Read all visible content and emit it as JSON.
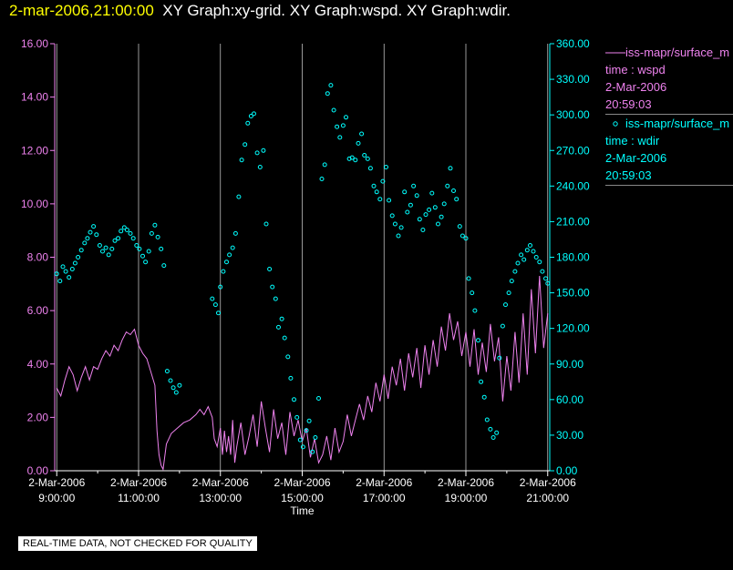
{
  "header": {
    "timestamp": "2-mar-2006,21:00:00",
    "titles": "XY Graph:xy-grid.  XY Graph:wspd.  XY Graph:wdir."
  },
  "legend": {
    "wspd": {
      "source": "iss-mapr/surface_m",
      "field": "time : wspd",
      "date": "2-Mar-2006",
      "time": "20:59:03"
    },
    "wdir": {
      "source": "iss-mapr/surface_m",
      "field": "time : wdir",
      "date": "2-Mar-2006",
      "time": "20:59:03"
    }
  },
  "footer": "REAL-TIME DATA, NOT CHECKED FOR QUALITY",
  "colors": {
    "wspd": "#ee82ee",
    "wdir": "#00ffff",
    "grid": "#ffffff",
    "background": "#000000"
  },
  "chart_data": {
    "type": "line",
    "xlabel": "Time",
    "xlim": [
      8.95,
      21.05
    ],
    "x_ticks": [
      {
        "value": 9,
        "line1": "2-Mar-2006",
        "line2": "9:00:00"
      },
      {
        "value": 11,
        "line1": "2-Mar-2006",
        "line2": "11:00:00"
      },
      {
        "value": 13,
        "line1": "2-Mar-2006",
        "line2": "13:00:00"
      },
      {
        "value": 15,
        "line1": "2-Mar-2006",
        "line2": "15:00:00"
      },
      {
        "value": 17,
        "line1": "2-Mar-2006",
        "line2": "17:00:00"
      },
      {
        "value": 19,
        "line1": "2-Mar-2006",
        "line2": "19:00:00"
      },
      {
        "value": 21,
        "line1": "2-Mar-2006",
        "line2": "21:00:00"
      }
    ],
    "x_minor_ticks": [
      10,
      12,
      14,
      16,
      18,
      20
    ],
    "y_left": {
      "lim": [
        0,
        16
      ],
      "ticks": [
        "0.00",
        "2.00",
        "4.00",
        "6.00",
        "8.00",
        "10.00",
        "12.00",
        "14.00",
        "16.00"
      ]
    },
    "y_right": {
      "lim": [
        0,
        360
      ],
      "ticks": [
        "0.00",
        "30.00",
        "60.00",
        "90.00",
        "120.00",
        "150.00",
        "180.00",
        "210.00",
        "240.00",
        "270.00",
        "300.00",
        "330.00",
        "360.00"
      ]
    },
    "grid": "vertical",
    "series": [
      {
        "name": "iss-mapr/surface_m time : wspd",
        "style": "line",
        "axis": "left",
        "points": [
          [
            9.0,
            3.1
          ],
          [
            9.1,
            2.8
          ],
          [
            9.2,
            3.4
          ],
          [
            9.3,
            3.9
          ],
          [
            9.4,
            3.6
          ],
          [
            9.5,
            3.0
          ],
          [
            9.6,
            3.5
          ],
          [
            9.7,
            3.9
          ],
          [
            9.8,
            3.4
          ],
          [
            9.9,
            3.9
          ],
          [
            10.0,
            3.8
          ],
          [
            10.1,
            4.2
          ],
          [
            10.2,
            4.5
          ],
          [
            10.3,
            4.3
          ],
          [
            10.4,
            4.7
          ],
          [
            10.5,
            4.5
          ],
          [
            10.6,
            4.9
          ],
          [
            10.7,
            5.2
          ],
          [
            10.8,
            5.1
          ],
          [
            10.9,
            5.3
          ],
          [
            11.0,
            4.7
          ],
          [
            11.1,
            4.4
          ],
          [
            11.2,
            4.2
          ],
          [
            11.3,
            3.7
          ],
          [
            11.4,
            3.2
          ],
          [
            11.45,
            1.5
          ],
          [
            11.5,
            0.6
          ],
          [
            11.55,
            0.2
          ],
          [
            11.6,
            0.05
          ],
          [
            11.68,
            1.0
          ],
          [
            11.8,
            1.4
          ],
          [
            11.95,
            1.6
          ],
          [
            12.1,
            1.8
          ],
          [
            12.25,
            1.9
          ],
          [
            12.4,
            2.1
          ],
          [
            12.5,
            2.3
          ],
          [
            12.6,
            2.1
          ],
          [
            12.7,
            2.4
          ],
          [
            12.8,
            2.0
          ],
          [
            12.85,
            1.2
          ],
          [
            12.92,
            0.9
          ],
          [
            13.0,
            1.6
          ],
          [
            13.05,
            0.6
          ],
          [
            13.1,
            1.5
          ],
          [
            13.15,
            0.7
          ],
          [
            13.2,
            1.3
          ],
          [
            13.25,
            0.6
          ],
          [
            13.3,
            1.9
          ],
          [
            13.35,
            0.3
          ],
          [
            13.4,
            0.9
          ],
          [
            13.5,
            1.8
          ],
          [
            13.6,
            0.6
          ],
          [
            13.7,
            1.3
          ],
          [
            13.8,
            2.1
          ],
          [
            13.9,
            0.9
          ],
          [
            14.0,
            2.6
          ],
          [
            14.1,
            1.6
          ],
          [
            14.2,
            0.7
          ],
          [
            14.3,
            2.3
          ],
          [
            14.4,
            1.2
          ],
          [
            14.5,
            1.8
          ],
          [
            14.6,
            0.6
          ],
          [
            14.7,
            2.2
          ],
          [
            14.8,
            1.3
          ],
          [
            14.9,
            1.9
          ],
          [
            15.0,
            1.1
          ],
          [
            15.1,
            1.6
          ],
          [
            15.2,
            0.5
          ],
          [
            15.3,
            1.2
          ],
          [
            15.4,
            0.3
          ],
          [
            15.5,
            0.6
          ],
          [
            15.6,
            1.3
          ],
          [
            15.7,
            0.4
          ],
          [
            15.8,
            1.6
          ],
          [
            15.9,
            0.7
          ],
          [
            16.0,
            1.1
          ],
          [
            16.1,
            2.1
          ],
          [
            16.2,
            1.3
          ],
          [
            16.3,
            1.9
          ],
          [
            16.4,
            2.5
          ],
          [
            16.5,
            1.9
          ],
          [
            16.6,
            2.8
          ],
          [
            16.7,
            2.2
          ],
          [
            16.8,
            3.3
          ],
          [
            16.9,
            2.6
          ],
          [
            17.0,
            3.6
          ],
          [
            17.1,
            2.7
          ],
          [
            17.2,
            3.9
          ],
          [
            17.3,
            3.2
          ],
          [
            17.4,
            4.2
          ],
          [
            17.5,
            3.0
          ],
          [
            17.6,
            4.4
          ],
          [
            17.7,
            3.5
          ],
          [
            17.8,
            4.6
          ],
          [
            17.9,
            3.1
          ],
          [
            18.0,
            4.7
          ],
          [
            18.1,
            3.6
          ],
          [
            18.2,
            4.9
          ],
          [
            18.3,
            3.9
          ],
          [
            18.4,
            5.4
          ],
          [
            18.5,
            4.5
          ],
          [
            18.6,
            5.9
          ],
          [
            18.7,
            4.9
          ],
          [
            18.8,
            5.6
          ],
          [
            18.9,
            4.3
          ],
          [
            19.0,
            5.2
          ],
          [
            19.1,
            3.9
          ],
          [
            19.2,
            5.3
          ],
          [
            19.3,
            3.6
          ],
          [
            19.4,
            4.8
          ],
          [
            19.5,
            3.7
          ],
          [
            19.6,
            5.5
          ],
          [
            19.7,
            4.1
          ],
          [
            19.8,
            5.0
          ],
          [
            19.9,
            2.6
          ],
          [
            20.0,
            4.3
          ],
          [
            20.1,
            3.0
          ],
          [
            20.2,
            5.2
          ],
          [
            20.3,
            3.3
          ],
          [
            20.4,
            5.9
          ],
          [
            20.5,
            3.6
          ],
          [
            20.6,
            6.8
          ],
          [
            20.7,
            4.4
          ],
          [
            20.8,
            7.3
          ],
          [
            20.9,
            4.6
          ],
          [
            21.0,
            5.9
          ]
        ]
      },
      {
        "name": "iss-mapr/surface_m time : wdir",
        "style": "points",
        "axis": "right",
        "points": [
          [
            9.0,
            166
          ],
          [
            9.08,
            160
          ],
          [
            9.15,
            172
          ],
          [
            9.22,
            168
          ],
          [
            9.3,
            163
          ],
          [
            9.38,
            170
          ],
          [
            9.45,
            175
          ],
          [
            9.52,
            180
          ],
          [
            9.6,
            186
          ],
          [
            9.68,
            192
          ],
          [
            9.75,
            196
          ],
          [
            9.82,
            201
          ],
          [
            9.9,
            206
          ],
          [
            9.97,
            199
          ],
          [
            10.05,
            190
          ],
          [
            10.12,
            185
          ],
          [
            10.2,
            188
          ],
          [
            10.27,
            182
          ],
          [
            10.35,
            187
          ],
          [
            10.42,
            194
          ],
          [
            10.5,
            196
          ],
          [
            10.57,
            202
          ],
          [
            10.65,
            205
          ],
          [
            10.72,
            203
          ],
          [
            10.8,
            200
          ],
          [
            10.87,
            196
          ],
          [
            10.95,
            190
          ],
          [
            11.02,
            187
          ],
          [
            11.1,
            181
          ],
          [
            11.17,
            176
          ],
          [
            11.25,
            185
          ],
          [
            11.32,
            200
          ],
          [
            11.4,
            207
          ],
          [
            11.47,
            197
          ],
          [
            11.55,
            187
          ],
          [
            11.62,
            173
          ],
          [
            11.7,
            84
          ],
          [
            11.78,
            76
          ],
          [
            11.85,
            70
          ],
          [
            11.92,
            66
          ],
          [
            12.0,
            72
          ],
          [
            12.8,
            145
          ],
          [
            12.88,
            140
          ],
          [
            12.95,
            133
          ],
          [
            13.0,
            155
          ],
          [
            13.07,
            168
          ],
          [
            13.15,
            176
          ],
          [
            13.22,
            182
          ],
          [
            13.3,
            188
          ],
          [
            13.37,
            200
          ],
          [
            13.45,
            231
          ],
          [
            13.52,
            262
          ],
          [
            13.6,
            275
          ],
          [
            13.67,
            293
          ],
          [
            13.75,
            299
          ],
          [
            13.82,
            301
          ],
          [
            13.9,
            268
          ],
          [
            13.97,
            256
          ],
          [
            14.05,
            270
          ],
          [
            14.12,
            208
          ],
          [
            14.2,
            170
          ],
          [
            14.27,
            155
          ],
          [
            14.35,
            145
          ],
          [
            14.42,
            121
          ],
          [
            14.5,
            128
          ],
          [
            14.57,
            112
          ],
          [
            14.65,
            96
          ],
          [
            14.72,
            78
          ],
          [
            14.8,
            60
          ],
          [
            14.87,
            45
          ],
          [
            14.95,
            26
          ],
          [
            15.02,
            20
          ],
          [
            15.1,
            34
          ],
          [
            15.17,
            42
          ],
          [
            15.25,
            16
          ],
          [
            15.32,
            28
          ],
          [
            15.4,
            61
          ],
          [
            15.48,
            246
          ],
          [
            15.55,
            258
          ],
          [
            15.62,
            318
          ],
          [
            15.7,
            325
          ],
          [
            15.77,
            304
          ],
          [
            15.85,
            290
          ],
          [
            15.92,
            281
          ],
          [
            16.0,
            291
          ],
          [
            16.07,
            298
          ],
          [
            16.15,
            263
          ],
          [
            16.22,
            264
          ],
          [
            16.3,
            262
          ],
          [
            16.37,
            276
          ],
          [
            16.45,
            284
          ],
          [
            16.52,
            266
          ],
          [
            16.6,
            263
          ],
          [
            16.67,
            255
          ],
          [
            16.75,
            240
          ],
          [
            16.82,
            235
          ],
          [
            16.9,
            229
          ],
          [
            16.97,
            244
          ],
          [
            17.05,
            256
          ],
          [
            17.12,
            228
          ],
          [
            17.2,
            215
          ],
          [
            17.27,
            208
          ],
          [
            17.35,
            198
          ],
          [
            17.42,
            205
          ],
          [
            17.5,
            235
          ],
          [
            17.57,
            218
          ],
          [
            17.65,
            224
          ],
          [
            17.72,
            240
          ],
          [
            17.8,
            232
          ],
          [
            17.87,
            212
          ],
          [
            17.95,
            203
          ],
          [
            18.02,
            216
          ],
          [
            18.1,
            220
          ],
          [
            18.17,
            234
          ],
          [
            18.25,
            222
          ],
          [
            18.32,
            208
          ],
          [
            18.4,
            214
          ],
          [
            18.47,
            225
          ],
          [
            18.55,
            240
          ],
          [
            18.62,
            255
          ],
          [
            18.7,
            236
          ],
          [
            18.77,
            229
          ],
          [
            18.85,
            206
          ],
          [
            18.92,
            198
          ],
          [
            19.0,
            196
          ],
          [
            19.07,
            162
          ],
          [
            19.15,
            150
          ],
          [
            19.22,
            135
          ],
          [
            19.3,
            110
          ],
          [
            19.37,
            75
          ],
          [
            19.45,
            62
          ],
          [
            19.52,
            43
          ],
          [
            19.6,
            35
          ],
          [
            19.67,
            28
          ],
          [
            19.75,
            32
          ],
          [
            19.82,
            95
          ],
          [
            19.9,
            122
          ],
          [
            19.97,
            140
          ],
          [
            20.05,
            150
          ],
          [
            20.12,
            160
          ],
          [
            20.2,
            168
          ],
          [
            20.27,
            175
          ],
          [
            20.35,
            182
          ],
          [
            20.42,
            178
          ],
          [
            20.5,
            186
          ],
          [
            20.57,
            190
          ],
          [
            20.65,
            185
          ],
          [
            20.72,
            180
          ],
          [
            20.8,
            176
          ],
          [
            20.87,
            168
          ],
          [
            20.95,
            162
          ],
          [
            21.0,
            158
          ]
        ]
      }
    ]
  }
}
